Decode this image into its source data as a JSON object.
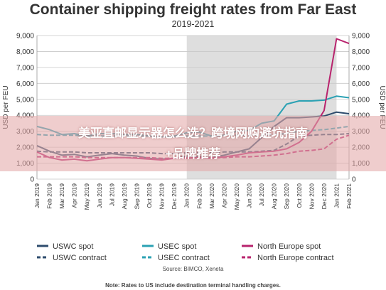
{
  "chart_data": {
    "type": "line",
    "title": "Container shipping freight rates from Far East",
    "subtitle": "2019-2021",
    "ylabel": "USD per FEU",
    "ylim": [
      0,
      9000
    ],
    "yticks": [
      "0",
      "1,000",
      "2,000",
      "3,000",
      "4,000",
      "5,000",
      "6,000",
      "7,000",
      "8,000",
      "9,000"
    ],
    "grid": true,
    "shaded_region": {
      "from": "Jan 2020",
      "to": "Jan 2021"
    },
    "categories": [
      "Jan 2019",
      "Feb 2019",
      "Mar 2019",
      "Apr 2019",
      "May 2019",
      "Jun 2019",
      "Jul 2019",
      "Aug 2019",
      "Sep 2019",
      "Oct 2019",
      "Nov 2019",
      "Dec 2019",
      "Jan 2020",
      "Feb 2020",
      "Mar 2020",
      "Apr 2020",
      "May 2020",
      "Jun 2020",
      "Jul 2020",
      "Aug 2020",
      "Sep 2020",
      "Oct 2020",
      "Nov 2020",
      "Dec 2020",
      "Jan 2021",
      "Feb 2021"
    ],
    "series": [
      {
        "name": "USWC spot",
        "color": "#2e4c6d",
        "dash": "solid",
        "values": [
          2100,
          1750,
          1500,
          1550,
          1400,
          1500,
          1600,
          1500,
          1450,
          1300,
          1250,
          1300,
          1450,
          1400,
          1350,
          1500,
          1700,
          1900,
          2600,
          3300,
          3850,
          3850,
          3900,
          3950,
          4200,
          4100
        ]
      },
      {
        "name": "USWC contract",
        "color": "#2e4c6d",
        "dash": "dashed",
        "values": [
          1750,
          1700,
          1700,
          1700,
          1650,
          1650,
          1650,
          1650,
          1650,
          1650,
          1600,
          1600,
          1650,
          1650,
          1650,
          1700,
          1700,
          1700,
          1750,
          1800,
          2200,
          2700,
          2750,
          2800,
          2800,
          2850
        ]
      },
      {
        "name": "USEC spot",
        "color": "#2aa1b3",
        "dash": "solid",
        "values": [
          3300,
          3100,
          2800,
          2850,
          2700,
          2850,
          2850,
          2800,
          2800,
          2700,
          2650,
          2700,
          2900,
          2950,
          2700,
          2750,
          3000,
          3050,
          3500,
          3650,
          4700,
          4900,
          4900,
          4950,
          5200,
          5100
        ]
      },
      {
        "name": "USEC contract",
        "color": "#2aa1b3",
        "dash": "dashed",
        "values": [
          2800,
          2750,
          2750,
          2750,
          2700,
          2700,
          2700,
          2700,
          2700,
          2700,
          2650,
          2650,
          2700,
          2700,
          2700,
          2750,
          2750,
          2750,
          2750,
          2800,
          2850,
          3000,
          3050,
          3100,
          3200,
          3300
        ]
      },
      {
        "name": "North Europe spot",
        "color": "#b8236d",
        "dash": "solid",
        "values": [
          1700,
          1350,
          1200,
          1250,
          1150,
          1250,
          1350,
          1350,
          1300,
          1250,
          1200,
          1300,
          1300,
          1350,
          1300,
          1400,
          1500,
          1650,
          1700,
          1750,
          1900,
          2300,
          3000,
          4300,
          8800,
          8500
        ]
      },
      {
        "name": "North Europe contract",
        "color": "#b8236d",
        "dash": "dashed",
        "values": [
          1400,
          1400,
          1400,
          1400,
          1350,
          1350,
          1350,
          1350,
          1350,
          1350,
          1300,
          1300,
          1350,
          1350,
          1350,
          1350,
          1400,
          1400,
          1450,
          1500,
          1600,
          1750,
          1800,
          1900,
          2500,
          2750
        ]
      }
    ],
    "legend_position": "bottom"
  },
  "overlay": {
    "line1": "美亚直邮显示器怎么选？跨境网购避坑指南",
    "line2": "+品牌推荐"
  },
  "source": "Source: BIMCO, Xeneta",
  "note": "Note: Rates to US include destination terminal handling charges."
}
